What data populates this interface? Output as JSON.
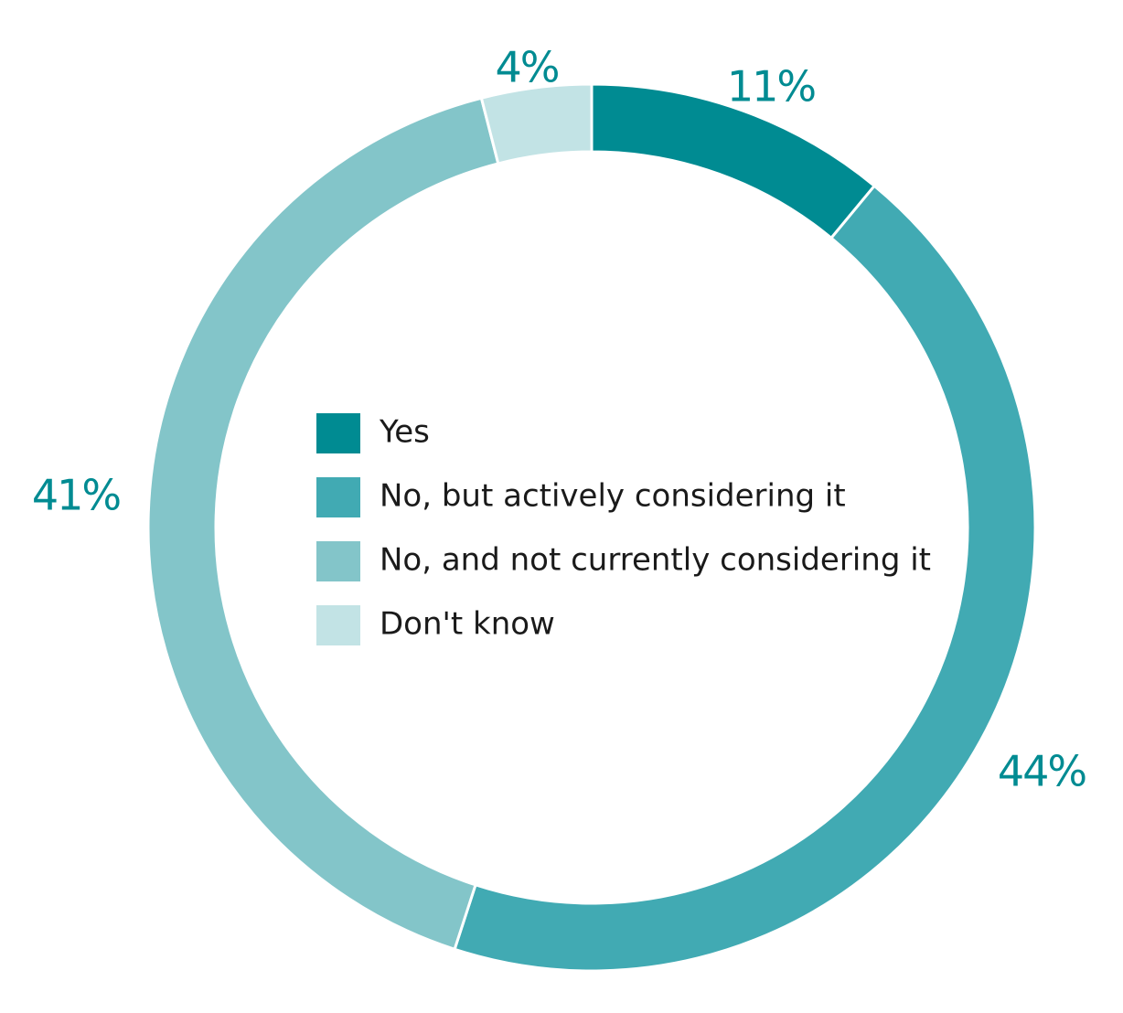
{
  "chart_data": {
    "type": "pie",
    "donut": true,
    "title": "",
    "slices": [
      {
        "label": "Yes",
        "value": 11,
        "display": "11%",
        "color": "#008b92"
      },
      {
        "label": "No, but actively considering it",
        "value": 44,
        "display": "44%",
        "color": "#41aab3"
      },
      {
        "label": "No, and not currently considering it",
        "value": 41,
        "display": "41%",
        "color": "#83c5c9"
      },
      {
        "label": "Don't know",
        "value": 4,
        "display": "4%",
        "color": "#c2e3e5"
      }
    ],
    "label_color": "#008b92",
    "legend_placement": "center",
    "start_angle": "top",
    "direction": "clockwise"
  }
}
